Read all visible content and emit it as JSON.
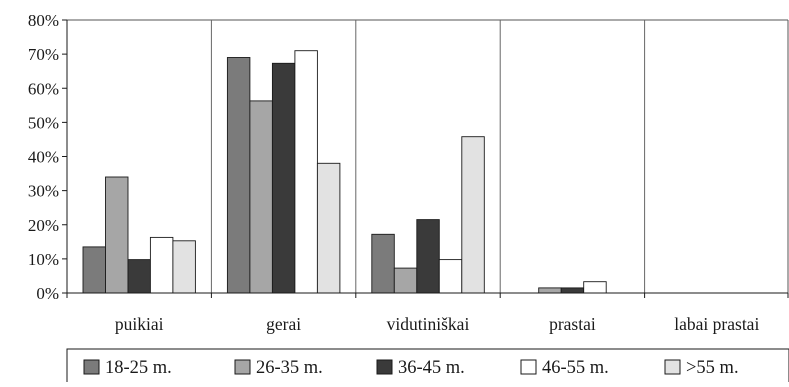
{
  "chart_data": {
    "type": "bar",
    "title": "",
    "xlabel": "",
    "ylabel": "",
    "ylim": [
      0,
      80
    ],
    "y_ticks": [
      "0%",
      "10%",
      "20%",
      "30%",
      "40%",
      "50%",
      "60%",
      "70%",
      "80%"
    ],
    "y_tick_values": [
      0,
      10,
      20,
      30,
      40,
      50,
      60,
      70,
      80
    ],
    "categories": [
      "puikiai",
      "gerai",
      "vidutiniškai",
      "prastai",
      "labai prastai"
    ],
    "series": [
      {
        "name": "18-25 m.",
        "color": "#7b7b7b",
        "values": [
          13.5,
          69,
          17.2,
          0,
          0
        ]
      },
      {
        "name": "26-35 m.",
        "color": "#a6a6a6",
        "values": [
          34,
          56.3,
          7.3,
          1.5,
          0
        ]
      },
      {
        "name": "36-45 m.",
        "color": "#3a3a3a",
        "values": [
          9.8,
          67.3,
          21.5,
          1.5,
          0
        ]
      },
      {
        "name": "46-55 m.",
        "color": "#ffffff",
        "values": [
          16.3,
          71,
          9.8,
          3.3,
          0
        ]
      },
      {
        "name": ">55 m.",
        "color": "#e2e2e2",
        "values": [
          15.3,
          38,
          45.8,
          0,
          0
        ]
      }
    ],
    "grid": "vertical category separators",
    "legend": "bottom"
  }
}
